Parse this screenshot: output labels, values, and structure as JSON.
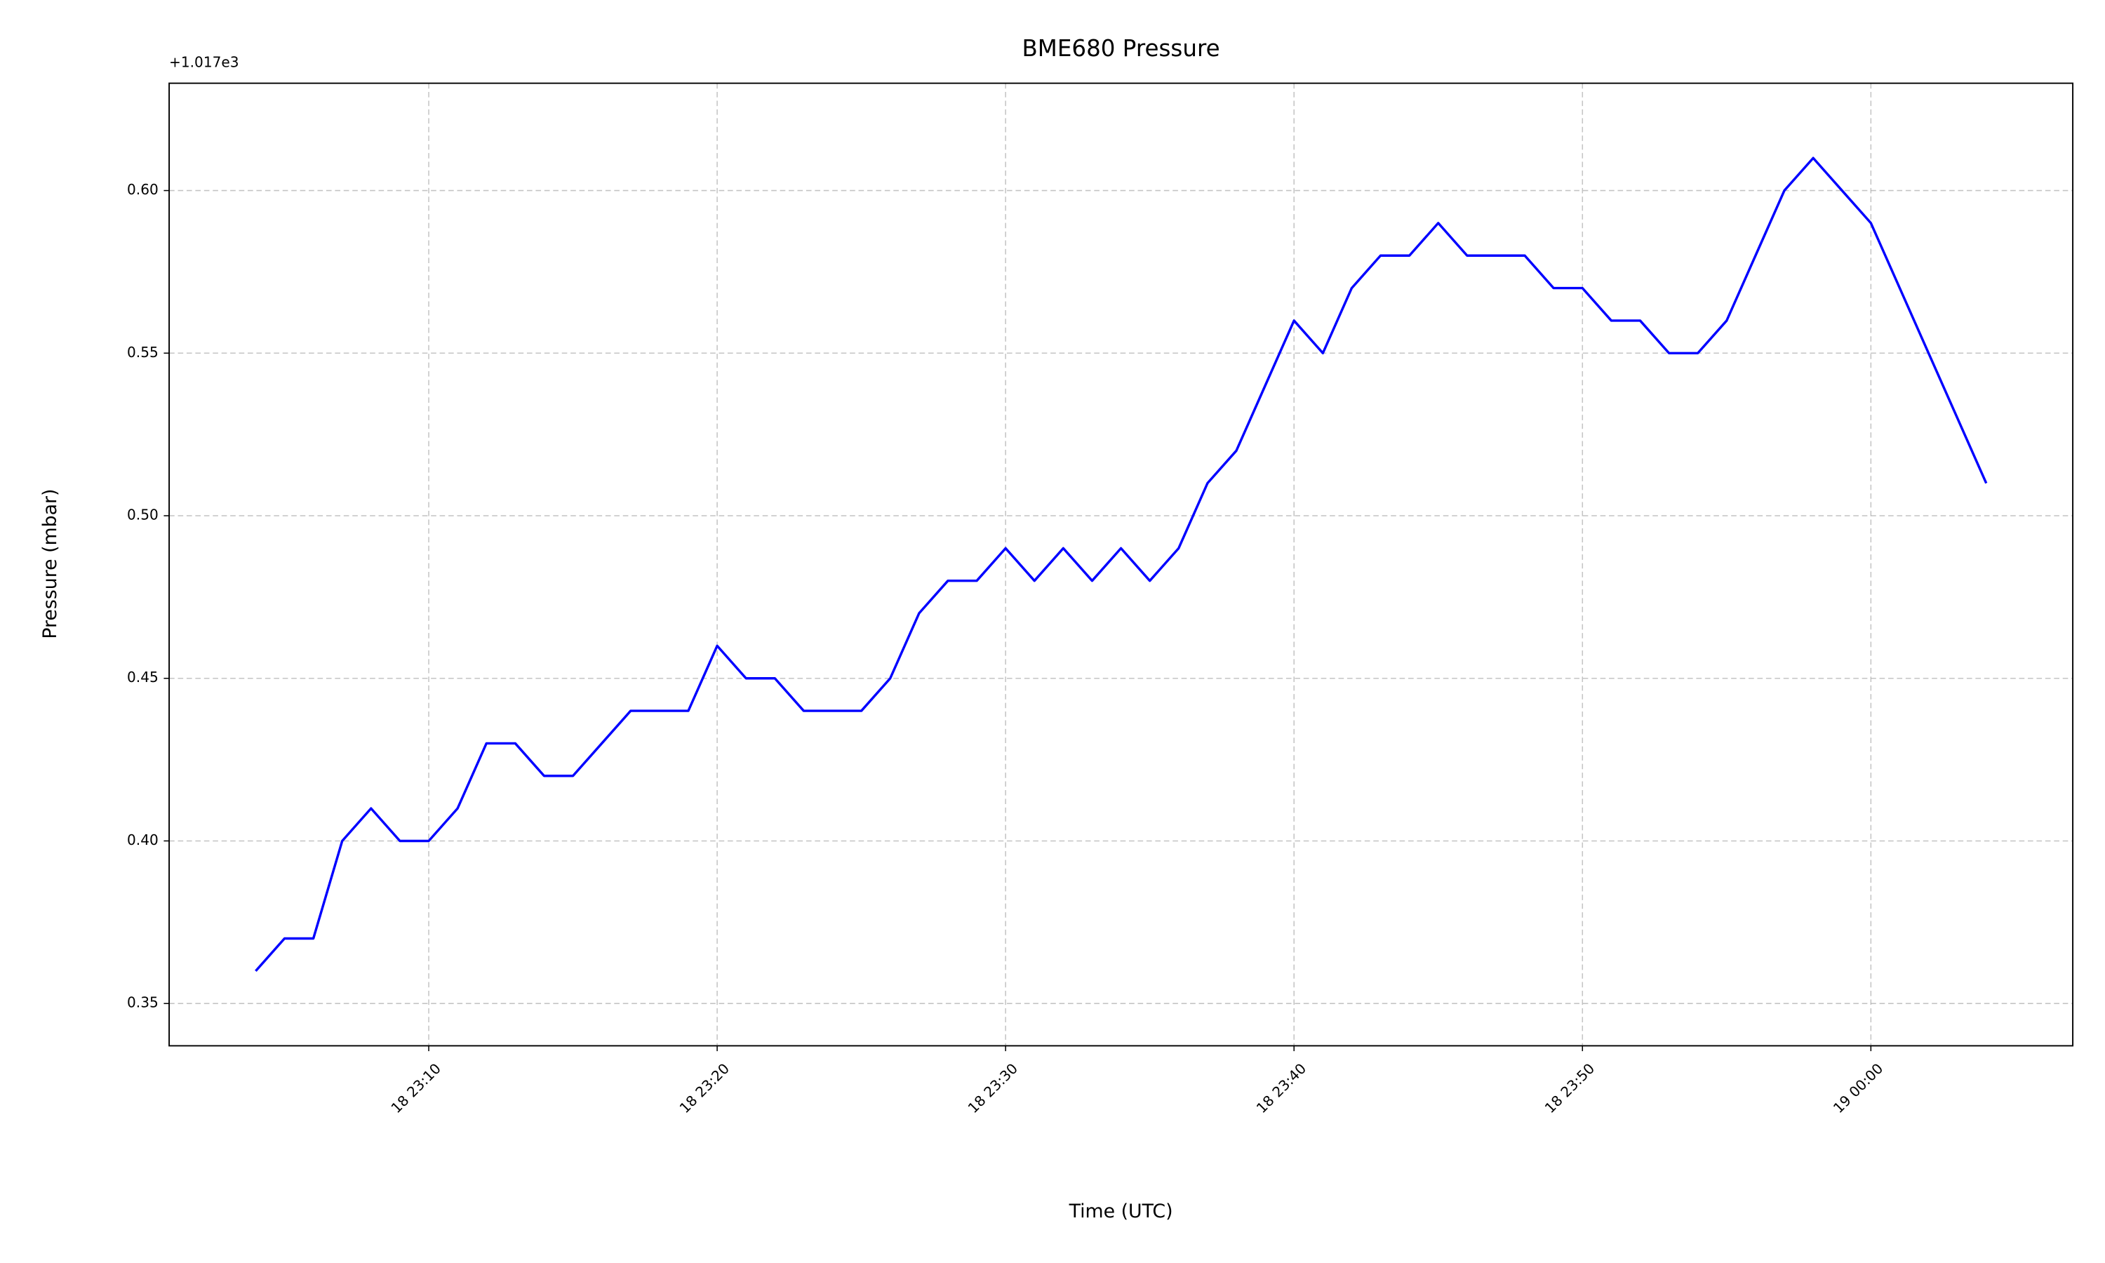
{
  "chart_data": {
    "type": "line",
    "title": "BME680 Pressure",
    "x_label": "Time (UTC)",
    "y_label": "Pressure (mbar)",
    "y_offset_label": "+1.017e3",
    "grid": true,
    "x": [
      "18 23:04",
      "18 23:05",
      "18 23:06",
      "18 23:07",
      "18 23:08",
      "18 23:09",
      "18 23:10",
      "18 23:11",
      "18 23:12",
      "18 23:13",
      "18 23:14",
      "18 23:15",
      "18 23:16",
      "18 23:17",
      "18 23:18",
      "18 23:19",
      "18 23:20",
      "18 23:21",
      "18 23:22",
      "18 23:23",
      "18 23:24",
      "18 23:25",
      "18 23:26",
      "18 23:27",
      "18 23:28",
      "18 23:29",
      "18 23:30",
      "18 23:31",
      "18 23:32",
      "18 23:33",
      "18 23:34",
      "18 23:35",
      "18 23:36",
      "18 23:37",
      "18 23:38",
      "18 23:39",
      "18 23:40",
      "18 23:41",
      "18 23:42",
      "18 23:43",
      "18 23:44",
      "18 23:45",
      "18 23:46",
      "18 23:47",
      "18 23:48",
      "18 23:49",
      "18 23:50",
      "18 23:51",
      "18 23:52",
      "18 23:53",
      "18 23:54",
      "18 23:55",
      "18 23:56",
      "18 23:57",
      "18 23:58",
      "18 23:59",
      "19 00:00",
      "19 00:01",
      "19 00:02",
      "19 00:03",
      "19 00:04"
    ],
    "series": [
      {
        "name": "Pressure",
        "color": "#0000ff",
        "values": [
          0.36,
          0.37,
          0.37,
          0.4,
          0.41,
          0.4,
          0.4,
          0.41,
          0.43,
          0.43,
          0.42,
          0.42,
          0.43,
          0.44,
          0.44,
          0.44,
          0.46,
          0.45,
          0.45,
          0.44,
          0.44,
          0.44,
          0.45,
          0.47,
          0.48,
          0.48,
          0.49,
          0.48,
          0.49,
          0.48,
          0.49,
          0.48,
          0.49,
          0.51,
          0.52,
          0.54,
          0.56,
          0.55,
          0.57,
          0.58,
          0.58,
          0.59,
          0.58,
          0.58,
          0.58,
          0.57,
          0.57,
          0.56,
          0.56,
          0.55,
          0.55,
          0.56,
          0.58,
          0.6,
          0.61,
          0.6,
          0.59,
          0.57,
          0.55,
          0.53,
          0.51
        ]
      }
    ],
    "xlim": [
      "18 23:01",
      "19 00:07"
    ],
    "xticks": [
      "18 23:10",
      "18 23:20",
      "18 23:30",
      "18 23:40",
      "18 23:50",
      "19 00:00"
    ],
    "ylim": [
      0.337,
      0.633
    ],
    "yticks": [
      0.35,
      {
        "value": 0.4,
        "label": "0.40"
      },
      0.45,
      {
        "value": 0.5,
        "label": "0.50"
      },
      0.55,
      {
        "value": 0.6,
        "label": "0.60"
      }
    ]
  }
}
